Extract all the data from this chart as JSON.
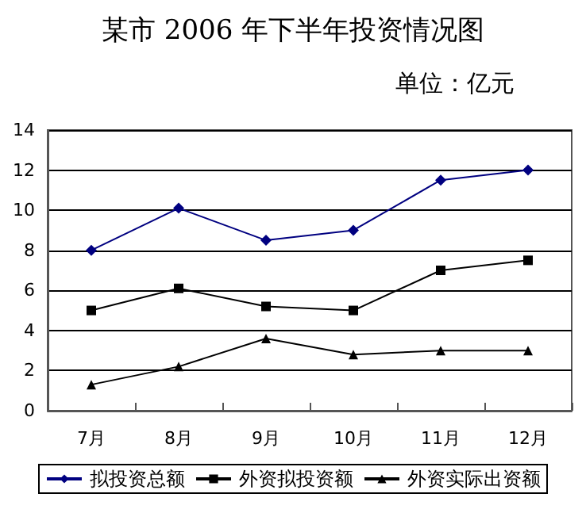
{
  "chart_data": {
    "type": "line",
    "title": "某市 2006 年下半年投资情况图",
    "subtitle": "单位：亿元",
    "categories": [
      "7月",
      "8月",
      "9月",
      "10月",
      "11月",
      "12月"
    ],
    "series": [
      {
        "name": "拟投资总额",
        "color": "#000080",
        "marker": "diamond",
        "values": [
          8,
          10.1,
          8.5,
          9,
          11.5,
          12
        ]
      },
      {
        "name": "外资拟投资额",
        "color": "#000000",
        "marker": "square",
        "values": [
          5,
          6.1,
          5.2,
          5,
          7,
          7.5
        ]
      },
      {
        "name": "外资实际出资额",
        "color": "#000000",
        "marker": "triangle",
        "values": [
          1.3,
          2.2,
          3.6,
          2.8,
          3,
          3
        ]
      }
    ],
    "ylim": [
      0,
      14
    ],
    "yticks": [
      0,
      2,
      4,
      6,
      8,
      10,
      12,
      14
    ],
    "grid": "y",
    "legend": "bottom"
  }
}
